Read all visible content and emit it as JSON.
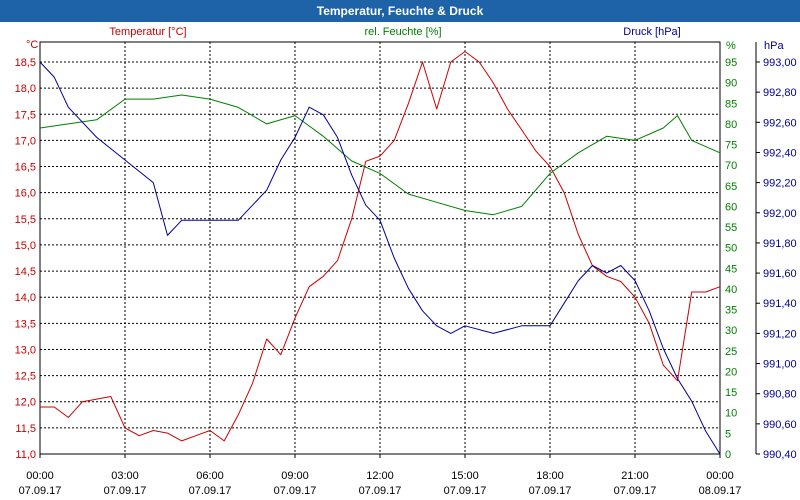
{
  "window": {
    "title": "Temperatur, Feuchte & Druck"
  },
  "colors": {
    "temperature": "#cc0000",
    "humidity": "#008000",
    "pressure": "#000099",
    "title_bar": "#1e62a8",
    "grid": "#000000"
  },
  "chart_data": {
    "type": "line",
    "title": "Temperatur, Feuchte & Druck",
    "axes": {
      "temperature": {
        "unit": "°C",
        "label": "Temperatur [°C]",
        "min": 11.0,
        "max": 18.5,
        "ticks": [
          "11,0",
          "11,5",
          "12,0",
          "12,5",
          "13,0",
          "13,5",
          "14,0",
          "14,5",
          "15,0",
          "15,5",
          "16,0",
          "16,5",
          "17,0",
          "17,5",
          "18,0",
          "18,5"
        ]
      },
      "humidity": {
        "unit": "%",
        "label": "rel. Feuchte [%]",
        "min": 0,
        "max": 95,
        "ticks": [
          "0",
          "5",
          "10",
          "15",
          "20",
          "25",
          "30",
          "35",
          "40",
          "45",
          "50",
          "55",
          "60",
          "65",
          "70",
          "75",
          "80",
          "85",
          "90",
          "95"
        ]
      },
      "pressure": {
        "unit": "hPa",
        "label": "Druck [hPa]",
        "min": 990.4,
        "max": 993.0,
        "ticks": [
          "990,40",
          "990,60",
          "990,80",
          "991,00",
          "991,20",
          "991,40",
          "991,60",
          "991,80",
          "992,00",
          "992,20",
          "992,40",
          "992,60",
          "992,80",
          "993,00"
        ]
      }
    },
    "x": {
      "hour_min": 0,
      "hour_max": 24,
      "ticks": [
        {
          "time": "00:00",
          "date": "07.09.17"
        },
        {
          "time": "03:00",
          "date": "07.09.17"
        },
        {
          "time": "06:00",
          "date": "07.09.17"
        },
        {
          "time": "09:00",
          "date": "07.09.17"
        },
        {
          "time": "12:00",
          "date": "07.09.17"
        },
        {
          "time": "15:00",
          "date": "07.09.17"
        },
        {
          "time": "18:00",
          "date": "07.09.17"
        },
        {
          "time": "21:00",
          "date": "07.09.17"
        },
        {
          "time": "00:00",
          "date": "08.09.17"
        }
      ]
    },
    "grid": true,
    "series": [
      {
        "name": "Temperatur",
        "axis": "temperature",
        "points": [
          [
            0,
            11.9
          ],
          [
            0.5,
            11.9
          ],
          [
            1,
            11.7
          ],
          [
            1.5,
            12.0
          ],
          [
            2,
            12.05
          ],
          [
            2.5,
            12.1
          ],
          [
            3,
            11.5
          ],
          [
            3.5,
            11.35
          ],
          [
            4,
            11.45
          ],
          [
            4.5,
            11.4
          ],
          [
            5,
            11.25
          ],
          [
            5.5,
            11.35
          ],
          [
            6,
            11.45
          ],
          [
            6.5,
            11.25
          ],
          [
            7,
            11.75
          ],
          [
            7.5,
            12.35
          ],
          [
            8,
            13.2
          ],
          [
            8.5,
            12.9
          ],
          [
            9,
            13.6
          ],
          [
            9.5,
            14.2
          ],
          [
            10,
            14.4
          ],
          [
            10.5,
            14.7
          ],
          [
            11,
            15.5
          ],
          [
            11.5,
            16.6
          ],
          [
            12,
            16.7
          ],
          [
            12.5,
            17.0
          ],
          [
            13,
            17.7
          ],
          [
            13.5,
            18.5
          ],
          [
            14,
            17.6
          ],
          [
            14.5,
            18.5
          ],
          [
            15,
            18.7
          ],
          [
            15.5,
            18.5
          ],
          [
            16,
            18.1
          ],
          [
            16.5,
            17.6
          ],
          [
            17,
            17.2
          ],
          [
            17.5,
            16.8
          ],
          [
            18,
            16.5
          ],
          [
            18.5,
            16.0
          ],
          [
            19,
            15.2
          ],
          [
            19.5,
            14.6
          ],
          [
            20,
            14.4
          ],
          [
            20.5,
            14.3
          ],
          [
            21,
            14.0
          ],
          [
            21.5,
            13.5
          ],
          [
            22,
            12.7
          ],
          [
            22.5,
            12.4
          ],
          [
            23,
            14.1
          ],
          [
            23.5,
            14.1
          ],
          [
            24,
            14.2
          ]
        ]
      },
      {
        "name": "rel. Feuchte",
        "axis": "humidity",
        "points": [
          [
            0,
            79
          ],
          [
            1,
            80
          ],
          [
            2,
            81
          ],
          [
            3,
            86
          ],
          [
            4,
            86
          ],
          [
            5,
            87
          ],
          [
            6,
            86
          ],
          [
            7,
            84
          ],
          [
            8,
            80
          ],
          [
            9,
            82
          ],
          [
            10,
            77
          ],
          [
            11,
            71
          ],
          [
            12,
            68
          ],
          [
            13,
            63
          ],
          [
            14,
            61
          ],
          [
            15,
            59
          ],
          [
            16,
            58
          ],
          [
            17,
            60
          ],
          [
            18,
            68
          ],
          [
            19,
            73
          ],
          [
            20,
            77
          ],
          [
            21,
            76
          ],
          [
            22,
            79
          ],
          [
            22.5,
            82
          ],
          [
            23,
            76
          ],
          [
            24,
            73
          ]
        ]
      },
      {
        "name": "Druck",
        "axis": "pressure",
        "points": [
          [
            0,
            993.0
          ],
          [
            0.5,
            992.9
          ],
          [
            1,
            992.7
          ],
          [
            2,
            992.5
          ],
          [
            3,
            992.35
          ],
          [
            4,
            992.2
          ],
          [
            4.5,
            991.85
          ],
          [
            5,
            991.95
          ],
          [
            6,
            991.95
          ],
          [
            7,
            991.95
          ],
          [
            7.5,
            992.05
          ],
          [
            8,
            992.15
          ],
          [
            8.5,
            992.35
          ],
          [
            9,
            992.5
          ],
          [
            9.5,
            992.7
          ],
          [
            10,
            992.65
          ],
          [
            10.5,
            992.5
          ],
          [
            11,
            992.25
          ],
          [
            11.5,
            992.05
          ],
          [
            12,
            991.95
          ],
          [
            12.5,
            991.7
          ],
          [
            13,
            991.5
          ],
          [
            13.5,
            991.35
          ],
          [
            14,
            991.25
          ],
          [
            14.5,
            991.2
          ],
          [
            15,
            991.25
          ],
          [
            16,
            991.2
          ],
          [
            17,
            991.25
          ],
          [
            18,
            991.25
          ],
          [
            19,
            991.55
          ],
          [
            19.5,
            991.65
          ],
          [
            20,
            991.6
          ],
          [
            20.5,
            991.65
          ],
          [
            21,
            991.55
          ],
          [
            21.5,
            991.35
          ],
          [
            22,
            991.1
          ],
          [
            22.5,
            990.9
          ],
          [
            23,
            990.75
          ],
          [
            23.5,
            990.55
          ],
          [
            24,
            990.4
          ]
        ]
      }
    ]
  }
}
